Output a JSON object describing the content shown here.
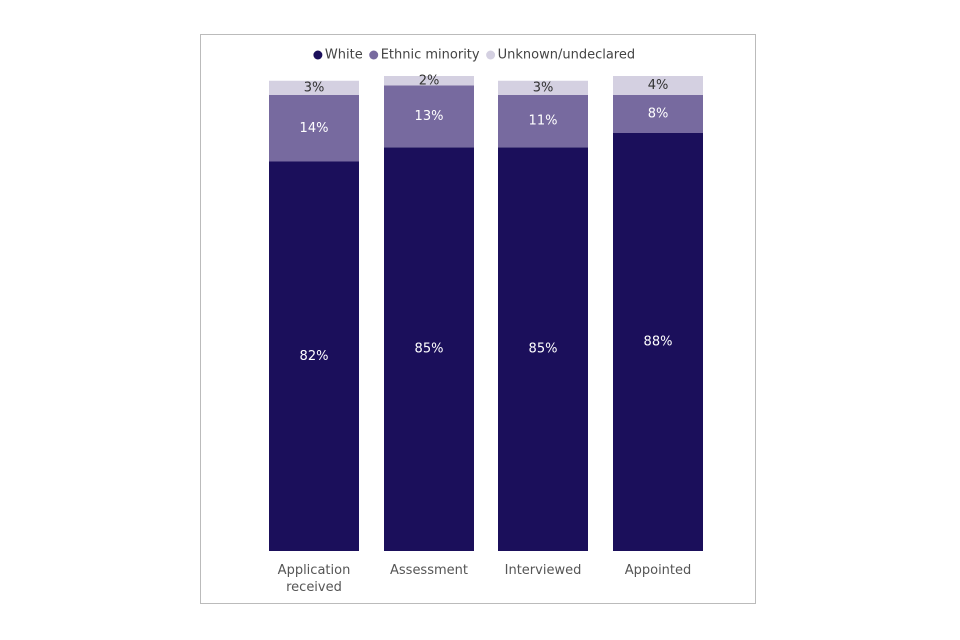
{
  "chart_data": {
    "type": "stacked_bar",
    "categories": [
      "Application received",
      "Assessment",
      "Interviewed",
      "Appointed"
    ],
    "series": [
      {
        "name": "White",
        "color": "#1b0f5b",
        "values": [
          82,
          85,
          85,
          88
        ],
        "value_labels": [
          "82%",
          "85%",
          "85%",
          "88%"
        ]
      },
      {
        "name": "Ethnic minority",
        "color": "#776a9f",
        "values": [
          14,
          13,
          11,
          8
        ],
        "value_labels": [
          "14%",
          "13%",
          "11%",
          "8%"
        ]
      },
      {
        "name": "Unknown/undeclared",
        "color": "#d4d0e1",
        "values": [
          3,
          2,
          3,
          4
        ],
        "value_labels": [
          "3%",
          "2%",
          "3%",
          "4%"
        ]
      }
    ],
    "ylim": [
      0,
      100
    ],
    "legend": "top"
  }
}
